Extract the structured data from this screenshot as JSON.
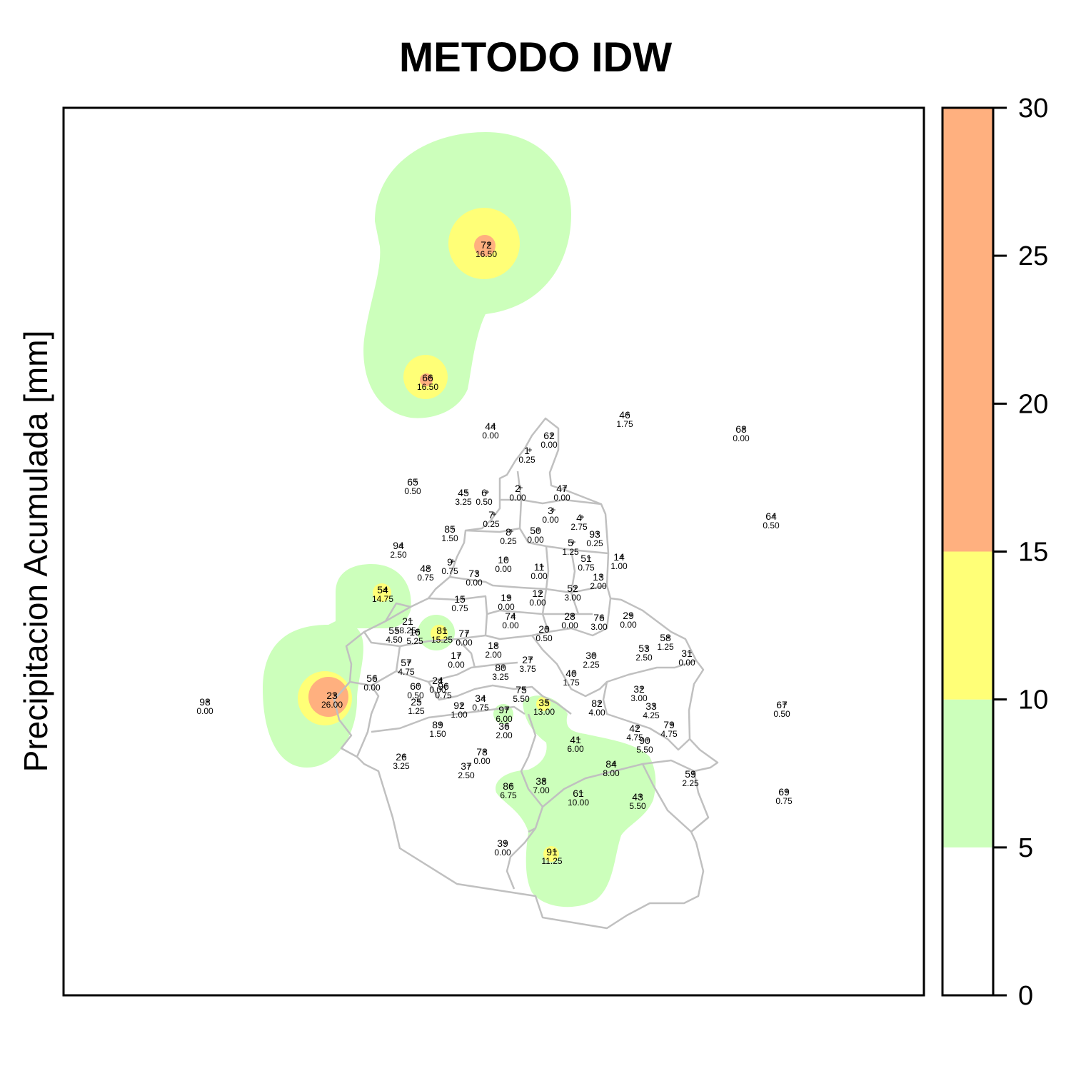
{
  "title": "METODO IDW",
  "ylabel": "Precipitacion Acumulada [mm]",
  "legend": {
    "ticks": [
      "0",
      "5",
      "10",
      "15",
      "20",
      "25",
      "30"
    ],
    "classes": [
      {
        "from": 0,
        "to": 5,
        "color": "#ffffff"
      },
      {
        "from": 5,
        "to": 10,
        "color": "#ccffbb"
      },
      {
        "from": 10,
        "to": 15,
        "color": "#ffff77"
      },
      {
        "from": 15,
        "to": 30,
        "color": "#ffb07f"
      }
    ]
  },
  "colors": {
    "outline": "#c0c0c0",
    "frame": "#000000"
  },
  "stations": [
    {
      "id": "72",
      "value": "16.50"
    },
    {
      "id": "66",
      "value": "16.50"
    },
    {
      "id": "44",
      "value": "0.00"
    },
    {
      "id": "62",
      "value": "0.00"
    },
    {
      "id": "46",
      "value": "1.75"
    },
    {
      "id": "68",
      "value": "0.00"
    },
    {
      "id": "1",
      "value": "0.25"
    },
    {
      "id": "65",
      "value": "0.50"
    },
    {
      "id": "45",
      "value": "3.25"
    },
    {
      "id": "6",
      "value": "0.50"
    },
    {
      "id": "2",
      "value": "0.00"
    },
    {
      "id": "47",
      "value": "0.00"
    },
    {
      "id": "64",
      "value": "0.50"
    },
    {
      "id": "7",
      "value": "0.25"
    },
    {
      "id": "3",
      "value": "0.00"
    },
    {
      "id": "4",
      "value": "2.75"
    },
    {
      "id": "85",
      "value": "1.50"
    },
    {
      "id": "8",
      "value": "0.25"
    },
    {
      "id": "50",
      "value": "0.00"
    },
    {
      "id": "93",
      "value": "0.25"
    },
    {
      "id": "94",
      "value": "2.50"
    },
    {
      "id": "5",
      "value": "1.25"
    },
    {
      "id": "14",
      "value": "1.00"
    },
    {
      "id": "9",
      "value": "0.75"
    },
    {
      "id": "10",
      "value": "0.00"
    },
    {
      "id": "51",
      "value": "0.75"
    },
    {
      "id": "48",
      "value": "0.75"
    },
    {
      "id": "73",
      "value": "0.00"
    },
    {
      "id": "11",
      "value": "0.00"
    },
    {
      "id": "13",
      "value": "2.00"
    },
    {
      "id": "54",
      "value": "14.75"
    },
    {
      "id": "52",
      "value": "3.00"
    },
    {
      "id": "15",
      "value": "0.75"
    },
    {
      "id": "19",
      "value": "0.00"
    },
    {
      "id": "12",
      "value": "0.00"
    },
    {
      "id": "28",
      "value": "0.00"
    },
    {
      "id": "76",
      "value": "3.00"
    },
    {
      "id": "29",
      "value": "0.00"
    },
    {
      "id": "21",
      "value": "8.25"
    },
    {
      "id": "74",
      "value": "0.00"
    },
    {
      "id": "20",
      "value": "0.50"
    },
    {
      "id": "55",
      "value": "4.50"
    },
    {
      "id": "16",
      "value": "5.25"
    },
    {
      "id": "81",
      "value": "15.25"
    },
    {
      "id": "77",
      "value": "0.00"
    },
    {
      "id": "58",
      "value": "1.25"
    },
    {
      "id": "53",
      "value": "2.50"
    },
    {
      "id": "31",
      "value": "0.00"
    },
    {
      "id": "18",
      "value": "2.00"
    },
    {
      "id": "17",
      "value": "0.00"
    },
    {
      "id": "30",
      "value": "2.25"
    },
    {
      "id": "57",
      "value": "4.75"
    },
    {
      "id": "27",
      "value": "3.75"
    },
    {
      "id": "80",
      "value": "3.25"
    },
    {
      "id": "40",
      "value": "1.75"
    },
    {
      "id": "56",
      "value": "0.00"
    },
    {
      "id": "24",
      "value": "0.00"
    },
    {
      "id": "96",
      "value": "0.75"
    },
    {
      "id": "60",
      "value": "0.50"
    },
    {
      "id": "32",
      "value": "3.00"
    },
    {
      "id": "98",
      "value": "0.00"
    },
    {
      "id": "23",
      "value": "26.00"
    },
    {
      "id": "75",
      "value": "5.50"
    },
    {
      "id": "35",
      "value": "13.00"
    },
    {
      "id": "67",
      "value": "0.50"
    },
    {
      "id": "34",
      "value": "0.75"
    },
    {
      "id": "82",
      "value": "4.00"
    },
    {
      "id": "25",
      "value": "1.25"
    },
    {
      "id": "92",
      "value": "1.00"
    },
    {
      "id": "97",
      "value": "6.00"
    },
    {
      "id": "33",
      "value": "4.25"
    },
    {
      "id": "79",
      "value": "4.75"
    },
    {
      "id": "89",
      "value": "1.50"
    },
    {
      "id": "36",
      "value": "2.00"
    },
    {
      "id": "42",
      "value": "4.75"
    },
    {
      "id": "90",
      "value": "5.50"
    },
    {
      "id": "41",
      "value": "6.00"
    },
    {
      "id": "26",
      "value": "3.25"
    },
    {
      "id": "78",
      "value": "0.00"
    },
    {
      "id": "84",
      "value": "8.00"
    },
    {
      "id": "37",
      "value": "2.50"
    },
    {
      "id": "59",
      "value": "2.25"
    },
    {
      "id": "86",
      "value": "6.75"
    },
    {
      "id": "38",
      "value": "7.00"
    },
    {
      "id": "61",
      "value": "10.00"
    },
    {
      "id": "43",
      "value": "5.50"
    },
    {
      "id": "69",
      "value": "0.75"
    },
    {
      "id": "39",
      "value": "0.00"
    },
    {
      "id": "91",
      "value": "11.25"
    }
  ]
}
